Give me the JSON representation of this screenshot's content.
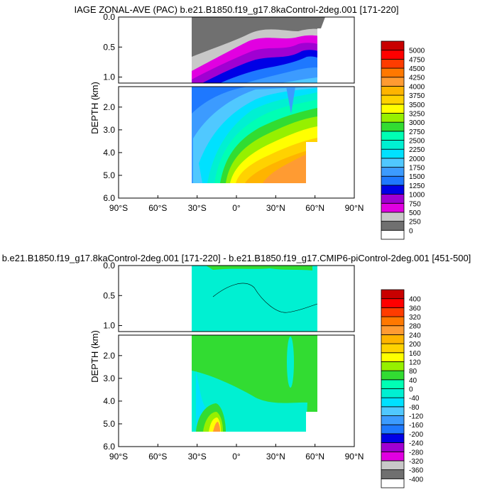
{
  "chart_data": [
    {
      "type": "heatmap",
      "title": "IAGE ZONAL-AVE (PAC) b.e21.B1850.f19_g17.8kaControl-2deg.001 [171-220]",
      "ylabel": "DEPTH (km)",
      "xlabel": "",
      "x_ticks": [
        "90°S",
        "60°S",
        "30°S",
        "0°",
        "30°N",
        "60°N",
        "90°N"
      ],
      "y_ticks_top": [
        "0.0",
        "0.5",
        "1.0"
      ],
      "y_ticks_bottom": [
        "2.0",
        "3.0",
        "4.0",
        "5.0",
        "6.0"
      ],
      "xlim": [
        -90,
        90
      ],
      "ylim_top": [
        0,
        1.1
      ],
      "ylim_bottom": [
        1.1,
        6.0
      ],
      "legend_position": "right",
      "colorbar": {
        "labels": [
          "0",
          "250",
          "500",
          "750",
          "1000",
          "1250",
          "1500",
          "1750",
          "2000",
          "2250",
          "2500",
          "2750",
          "3000",
          "3250",
          "3500",
          "3750",
          "4000",
          "4250",
          "4500",
          "4750",
          "5000"
        ],
        "colors": [
          "#ffffff",
          "#707070",
          "#c8c8c8",
          "#e100e1",
          "#a000d2",
          "#0000e6",
          "#1e78ff",
          "#3c9bff",
          "#50c8ff",
          "#00e1ff",
          "#00f0d2",
          "#00ffb4",
          "#32dc32",
          "#96f000",
          "#ffff00",
          "#ffd200",
          "#ffb400",
          "#ff9b32",
          "#ff7800",
          "#ff3c00",
          "#ff0000",
          "#c80000"
        ]
      }
    },
    {
      "type": "heatmap",
      "title": "b.e21.B1850.f19_g17.8kaControl-2deg.001 [171-220] - b.e21.B1850.f19_g17.CMIP6-piControl-2deg.001 [451-500]",
      "ylabel": "DEPTH (km)",
      "xlabel": "",
      "x_ticks": [
        "90°S",
        "60°S",
        "30°S",
        "0°",
        "30°N",
        "60°N",
        "90°N"
      ],
      "y_ticks_top": [
        "0.0",
        "0.5",
        "1.0"
      ],
      "y_ticks_bottom": [
        "2.0",
        "3.0",
        "4.0",
        "5.0",
        "6.0"
      ],
      "xlim": [
        -90,
        90
      ],
      "ylim_top": [
        0,
        1.1
      ],
      "ylim_bottom": [
        1.1,
        6.0
      ],
      "legend_position": "right",
      "colorbar": {
        "labels": [
          "-400",
          "-360",
          "-320",
          "-280",
          "-240",
          "-200",
          "-160",
          "-120",
          "-80",
          "-40",
          "0",
          "40",
          "80",
          "120",
          "160",
          "200",
          "240",
          "280",
          "320",
          "360",
          "400"
        ],
        "colors": [
          "#ffffff",
          "#707070",
          "#c8c8c8",
          "#e100e1",
          "#a000d2",
          "#0000e6",
          "#1e78ff",
          "#3c9bff",
          "#50c8ff",
          "#00e1ff",
          "#00f0d2",
          "#00ffb4",
          "#32dc32",
          "#96f000",
          "#ffff00",
          "#ffd200",
          "#ffb400",
          "#ff9b32",
          "#ff7800",
          "#ff3c00",
          "#ff0000",
          "#c80000"
        ]
      }
    }
  ]
}
